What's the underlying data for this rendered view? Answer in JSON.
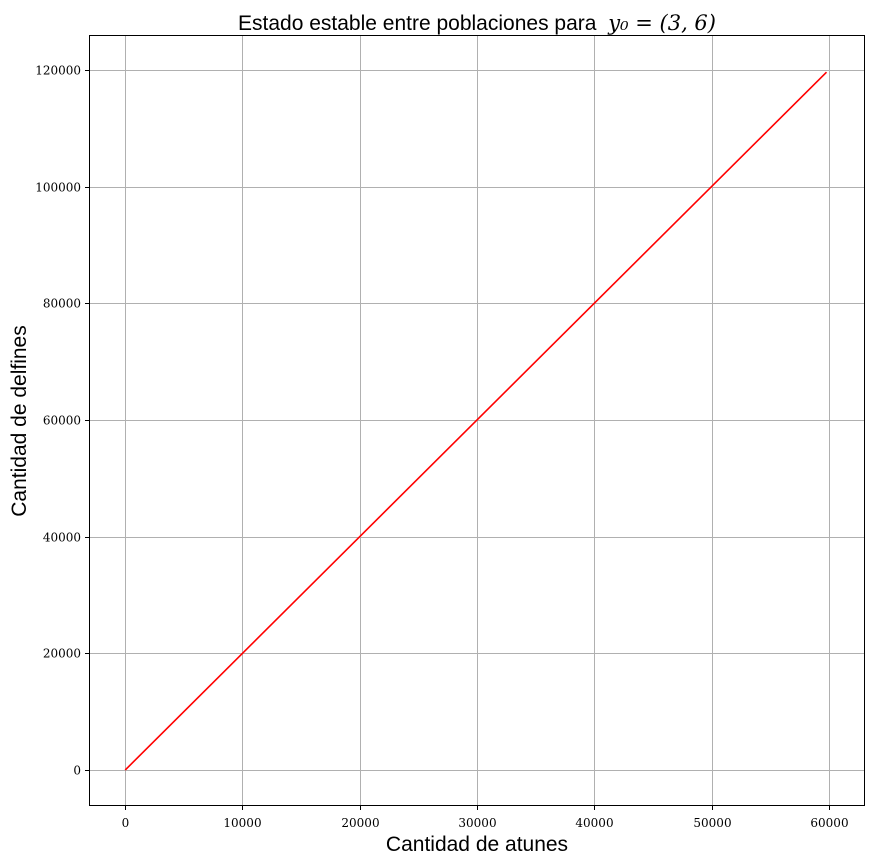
{
  "chart_data": {
    "type": "line",
    "title": "Estado estable entre poblaciones para",
    "title_math": "y₀ = (3, 6)",
    "xlabel": "Cantidad de atunes",
    "ylabel": "Cantidad de delfines",
    "xlim": [
      -3000,
      63000
    ],
    "ylim": [
      -6000,
      125800
    ],
    "x_ticks": [
      0,
      10000,
      20000,
      30000,
      40000,
      50000,
      60000
    ],
    "x_tick_labels": [
      "0",
      "10000",
      "20000",
      "30000",
      "40000",
      "50000",
      "60000"
    ],
    "y_ticks": [
      0,
      20000,
      40000,
      60000,
      80000,
      100000,
      120000
    ],
    "y_tick_labels": [
      "0",
      "20000",
      "40000",
      "60000",
      "80000",
      "100000",
      "120000"
    ],
    "grid": true,
    "series": [
      {
        "color": "#ff0000",
        "x": [
          0,
          59800
        ],
        "y": [
          0,
          119600
        ]
      }
    ]
  }
}
